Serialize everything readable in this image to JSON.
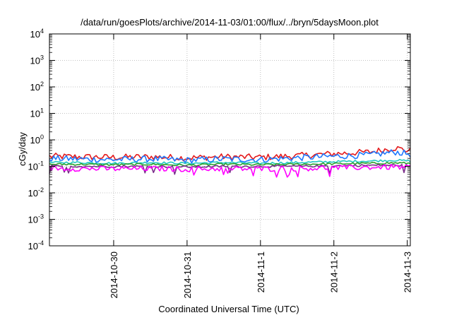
{
  "chart_data": {
    "type": "line",
    "title": "/data/run/goesPlots/archive/2014-11-03/01:00/flux/../bryn/5daysMoon.plot",
    "xlabel": "Coordinated Universal Time (UTC)",
    "ylabel": "cGy/day",
    "yscale": "log",
    "ylim": [
      0.0001,
      10000
    ],
    "y_ticks": [
      {
        "value": 0.0001,
        "base": "10",
        "exp": "-4"
      },
      {
        "value": 0.001,
        "base": "10",
        "exp": "-3"
      },
      {
        "value": 0.01,
        "base": "10",
        "exp": "-2"
      },
      {
        "value": 0.1,
        "base": "10",
        "exp": "-1"
      },
      {
        "value": 1,
        "base": "10",
        "exp": "0"
      },
      {
        "value": 10,
        "base": "10",
        "exp": "1"
      },
      {
        "value": 100,
        "base": "10",
        "exp": "2"
      },
      {
        "value": 1000,
        "base": "10",
        "exp": "3"
      },
      {
        "value": 10000,
        "base": "10",
        "exp": "4"
      }
    ],
    "xlim": [
      "2014-10-29 03:00",
      "2014-11-03 01:00"
    ],
    "x_ticks": [
      "2014-10-30",
      "2014-10-31",
      "2014-11-1",
      "2014-11-2",
      "2014-11-3"
    ],
    "grid": true,
    "x": [
      "2014-10-29 03:00",
      "2014-10-29 12:00",
      "2014-10-30 00:00",
      "2014-10-30 12:00",
      "2014-10-31 00:00",
      "2014-10-31 12:00",
      "2014-11-01 00:00",
      "2014-11-01 12:00",
      "2014-11-02 00:00",
      "2014-11-02 12:00",
      "2014-11-02 20:00",
      "2014-11-03 01:00"
    ],
    "series": [
      {
        "color": "#e41a1c",
        "values": [
          0.24,
          0.23,
          0.22,
          0.23,
          0.21,
          0.23,
          0.22,
          0.25,
          0.3,
          0.35,
          0.5,
          0.38
        ]
      },
      {
        "color": "#1e78ff",
        "values": [
          0.2,
          0.19,
          0.18,
          0.19,
          0.17,
          0.19,
          0.18,
          0.21,
          0.24,
          0.27,
          0.35,
          0.29
        ]
      },
      {
        "color": "#20c8c0",
        "values": [
          0.14,
          0.14,
          0.13,
          0.14,
          0.13,
          0.14,
          0.13,
          0.14,
          0.15,
          0.16,
          0.17,
          0.16
        ]
      },
      {
        "color": "#2ca02c",
        "values": [
          0.12,
          0.12,
          0.115,
          0.12,
          0.11,
          0.12,
          0.115,
          0.12,
          0.125,
          0.13,
          0.135,
          0.13
        ]
      },
      {
        "color": "#7b2d8b",
        "values": [
          0.1,
          0.1,
          0.1,
          0.1,
          0.095,
          0.1,
          0.1,
          0.1,
          0.105,
          0.11,
          0.11,
          0.108
        ]
      },
      {
        "color": "#ff00ff",
        "values": [
          0.085,
          0.082,
          0.08,
          0.083,
          0.078,
          0.082,
          0.08,
          0.083,
          0.088,
          0.092,
          0.095,
          0.09
        ]
      }
    ]
  }
}
